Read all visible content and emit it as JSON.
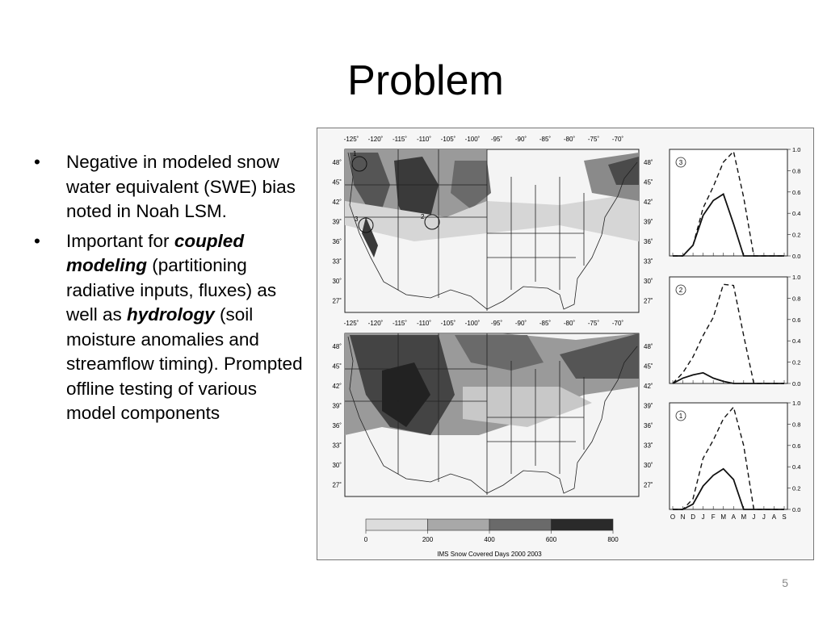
{
  "slide": {
    "title": "Problem",
    "page_number": "5"
  },
  "bullets": [
    {
      "text": "Negative in modeled snow water equivalent (SWE) bias noted in Noah LSM."
    },
    {
      "pre": "Important for ",
      "em1": "coupled modeling",
      "mid": " (partitioning radiative inputs, fluxes) as well as ",
      "em2": "hydrology",
      "post": " (soil moisture anomalies and streamflow timing). Prompted offline testing of various model components"
    }
  ],
  "figure": {
    "lon_ticks": [
      "-125˚",
      "-120˚",
      "-115˚",
      "-110˚",
      "-105˚",
      "-100˚",
      "-95˚",
      "-90˚",
      "-85˚",
      "-80˚",
      "-75˚",
      "-70˚"
    ],
    "lat_ticks": [
      "48˚",
      "45˚",
      "42˚",
      "39˚",
      "36˚",
      "33˚",
      "30˚",
      "27˚"
    ],
    "site_labels": [
      "1",
      "2",
      "3"
    ],
    "colorbar": {
      "ticks": [
        "0",
        "200",
        "400",
        "600",
        "800"
      ],
      "label": "IMS Snow Covered Days 2000 2003",
      "colors": [
        "#dcdcdc",
        "#a8a8a8",
        "#6a6a6a",
        "#2a2a2a"
      ]
    },
    "panel_yticks": [
      "0.0",
      "0.2",
      "0.4",
      "0.6",
      "0.8",
      "1.0"
    ],
    "month_labels": [
      "O",
      "N",
      "D",
      "J",
      "F",
      "M",
      "A",
      "M",
      "J",
      "J",
      "A",
      "S"
    ],
    "panels": [
      {
        "site": "3"
      },
      {
        "site": "2"
      },
      {
        "site": "1"
      }
    ]
  },
  "chart_data": [
    {
      "type": "line",
      "title": "",
      "site": "3",
      "x": [
        "O",
        "N",
        "D",
        "J",
        "F",
        "M",
        "A",
        "M",
        "J",
        "J",
        "A",
        "S"
      ],
      "ylim": [
        0,
        1
      ],
      "series": [
        {
          "values": [
            0,
            0,
            0.1,
            0.38,
            0.52,
            0.58,
            0.3,
            0,
            0,
            0,
            0,
            0
          ]
        },
        {
          "values": [
            0,
            0,
            0.1,
            0.45,
            0.65,
            0.88,
            0.98,
            0.55,
            0,
            0,
            0,
            0
          ]
        }
      ]
    },
    {
      "type": "line",
      "title": "",
      "site": "2",
      "x": [
        "O",
        "N",
        "D",
        "J",
        "F",
        "M",
        "A",
        "M",
        "J",
        "J",
        "A",
        "S"
      ],
      "ylim": [
        0,
        1
      ],
      "series": [
        {
          "values": [
            0,
            0.05,
            0.08,
            0.1,
            0.05,
            0.02,
            0,
            0,
            0,
            0,
            0,
            0
          ]
        },
        {
          "values": [
            0,
            0.1,
            0.25,
            0.45,
            0.62,
            0.93,
            0.92,
            0.45,
            0,
            0,
            0,
            0
          ]
        }
      ]
    },
    {
      "type": "line",
      "title": "",
      "site": "1",
      "x": [
        "O",
        "N",
        "D",
        "J",
        "F",
        "M",
        "A",
        "M",
        "J",
        "J",
        "A",
        "S"
      ],
      "ylim": [
        0,
        1
      ],
      "series": [
        {
          "values": [
            0,
            0,
            0.05,
            0.22,
            0.32,
            0.38,
            0.28,
            0,
            0,
            0,
            0,
            0
          ]
        },
        {
          "values": [
            0,
            0,
            0.1,
            0.48,
            0.65,
            0.85,
            0.96,
            0.6,
            0,
            0,
            0,
            0
          ]
        }
      ]
    }
  ]
}
